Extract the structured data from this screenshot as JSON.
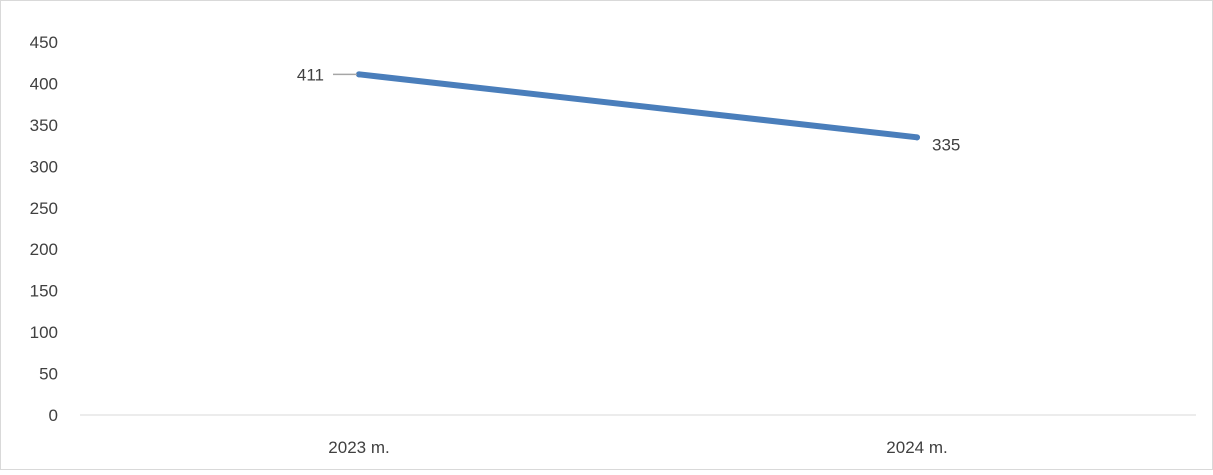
{
  "chart_data": {
    "type": "line",
    "title": "",
    "xlabel": "",
    "ylabel": "",
    "categories": [
      "2023 m.",
      "2024 m."
    ],
    "series": [
      {
        "values": [
          411,
          335
        ],
        "color": "#4a7ebb"
      }
    ],
    "data_labels": [
      "411",
      "335"
    ],
    "ylim": [
      0,
      450
    ],
    "y_ticks": [
      0,
      50,
      100,
      150,
      200,
      250,
      300,
      350,
      400,
      450
    ],
    "y_tick_labels": [
      "0",
      "50",
      "100",
      "150",
      "200",
      "250",
      "300",
      "350",
      "400",
      "450"
    ],
    "grid": false,
    "legend": "none",
    "axis_color": "#d9d9d9",
    "text_color": "#404040",
    "leader_line_color": "#a6a6a6",
    "frame_color": "#d9d9d9"
  }
}
